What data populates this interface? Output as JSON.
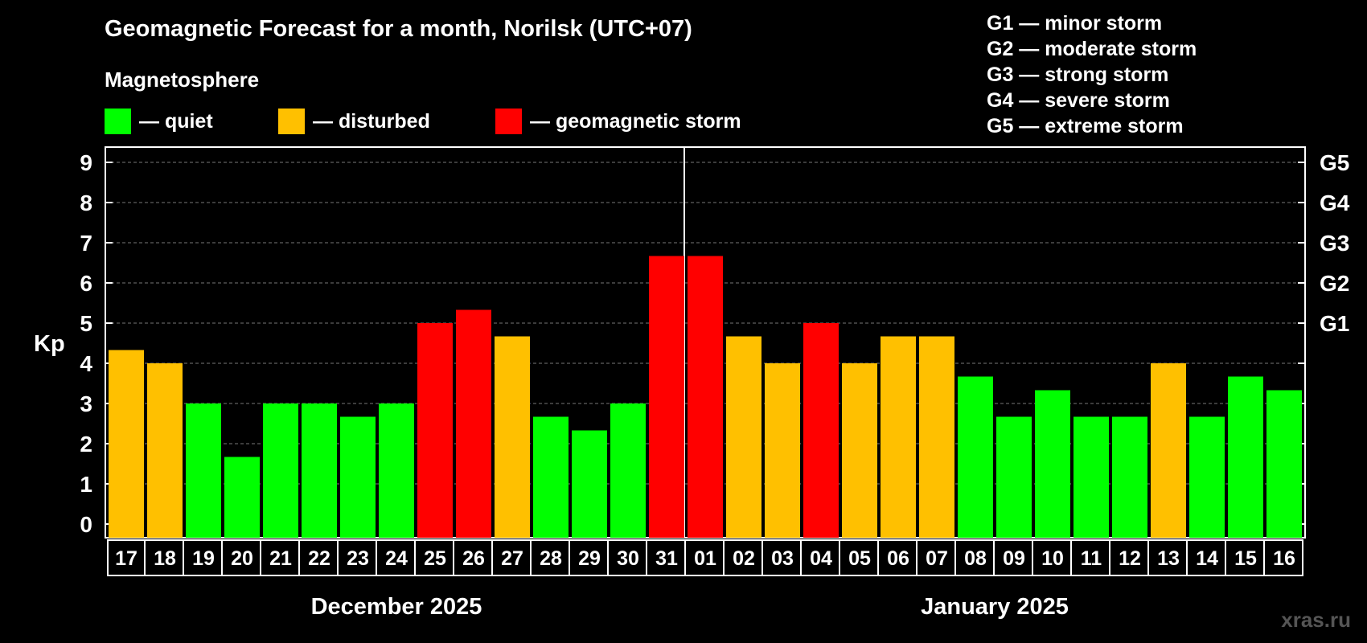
{
  "header": {
    "title": "Geomagnetic Forecast for a month, Norilsk (UTC+07)",
    "subtitle": "Magnetosphere"
  },
  "legend": [
    {
      "label": "— quiet",
      "color": "#00ff00"
    },
    {
      "label": "— disturbed",
      "color": "#ffc000"
    },
    {
      "label": "— geomagnetic storm",
      "color": "#ff0000"
    }
  ],
  "storm_levels": [
    "G1 — minor storm",
    "G2 — moderate storm",
    "G3 — strong storm",
    "G4 — severe storm",
    "G5 — extreme storm"
  ],
  "watermark": "xras.ru",
  "chart_data": {
    "type": "bar",
    "title": "Geomagnetic Forecast for a month, Norilsk (UTC+07)",
    "ylabel": "Kp",
    "ylim": [
      0,
      9
    ],
    "yticks": [
      "0",
      "1",
      "2",
      "3",
      "4",
      "5",
      "6",
      "7",
      "8",
      "9"
    ],
    "right_axis_labels": [
      {
        "value": 5,
        "label": "G1"
      },
      {
        "value": 6,
        "label": "G2"
      },
      {
        "value": 7,
        "label": "G3"
      },
      {
        "value": 8,
        "label": "G4"
      },
      {
        "value": 9,
        "label": "G5"
      }
    ],
    "categories": [
      "17",
      "18",
      "19",
      "20",
      "21",
      "22",
      "23",
      "24",
      "25",
      "26",
      "27",
      "28",
      "29",
      "30",
      "31",
      "01",
      "02",
      "03",
      "04",
      "05",
      "06",
      "07",
      "08",
      "09",
      "10",
      "11",
      "12",
      "13",
      "14",
      "15",
      "16"
    ],
    "values": [
      4.33,
      4.0,
      3.0,
      1.67,
      3.0,
      3.0,
      2.67,
      3.0,
      5.0,
      5.33,
      4.67,
      2.67,
      2.33,
      3.0,
      6.67,
      6.67,
      4.67,
      4.0,
      5.0,
      4.0,
      4.67,
      4.67,
      3.67,
      2.67,
      3.33,
      2.67,
      2.67,
      4.0,
      2.67,
      3.67,
      3.33
    ],
    "levels": [
      "disturbed",
      "disturbed",
      "quiet",
      "quiet",
      "quiet",
      "quiet",
      "quiet",
      "quiet",
      "storm",
      "storm",
      "disturbed",
      "quiet",
      "quiet",
      "quiet",
      "storm",
      "storm",
      "disturbed",
      "disturbed",
      "storm",
      "disturbed",
      "disturbed",
      "disturbed",
      "quiet",
      "quiet",
      "quiet",
      "quiet",
      "quiet",
      "disturbed",
      "quiet",
      "quiet",
      "quiet"
    ],
    "level_colors": {
      "quiet": "#00ff00",
      "disturbed": "#ffc000",
      "storm": "#ff0000"
    },
    "month_groups": [
      {
        "label": "December 2025",
        "count": 15
      },
      {
        "label": "January 2025",
        "count": 16
      }
    ],
    "grid": "dashed horizontal"
  }
}
